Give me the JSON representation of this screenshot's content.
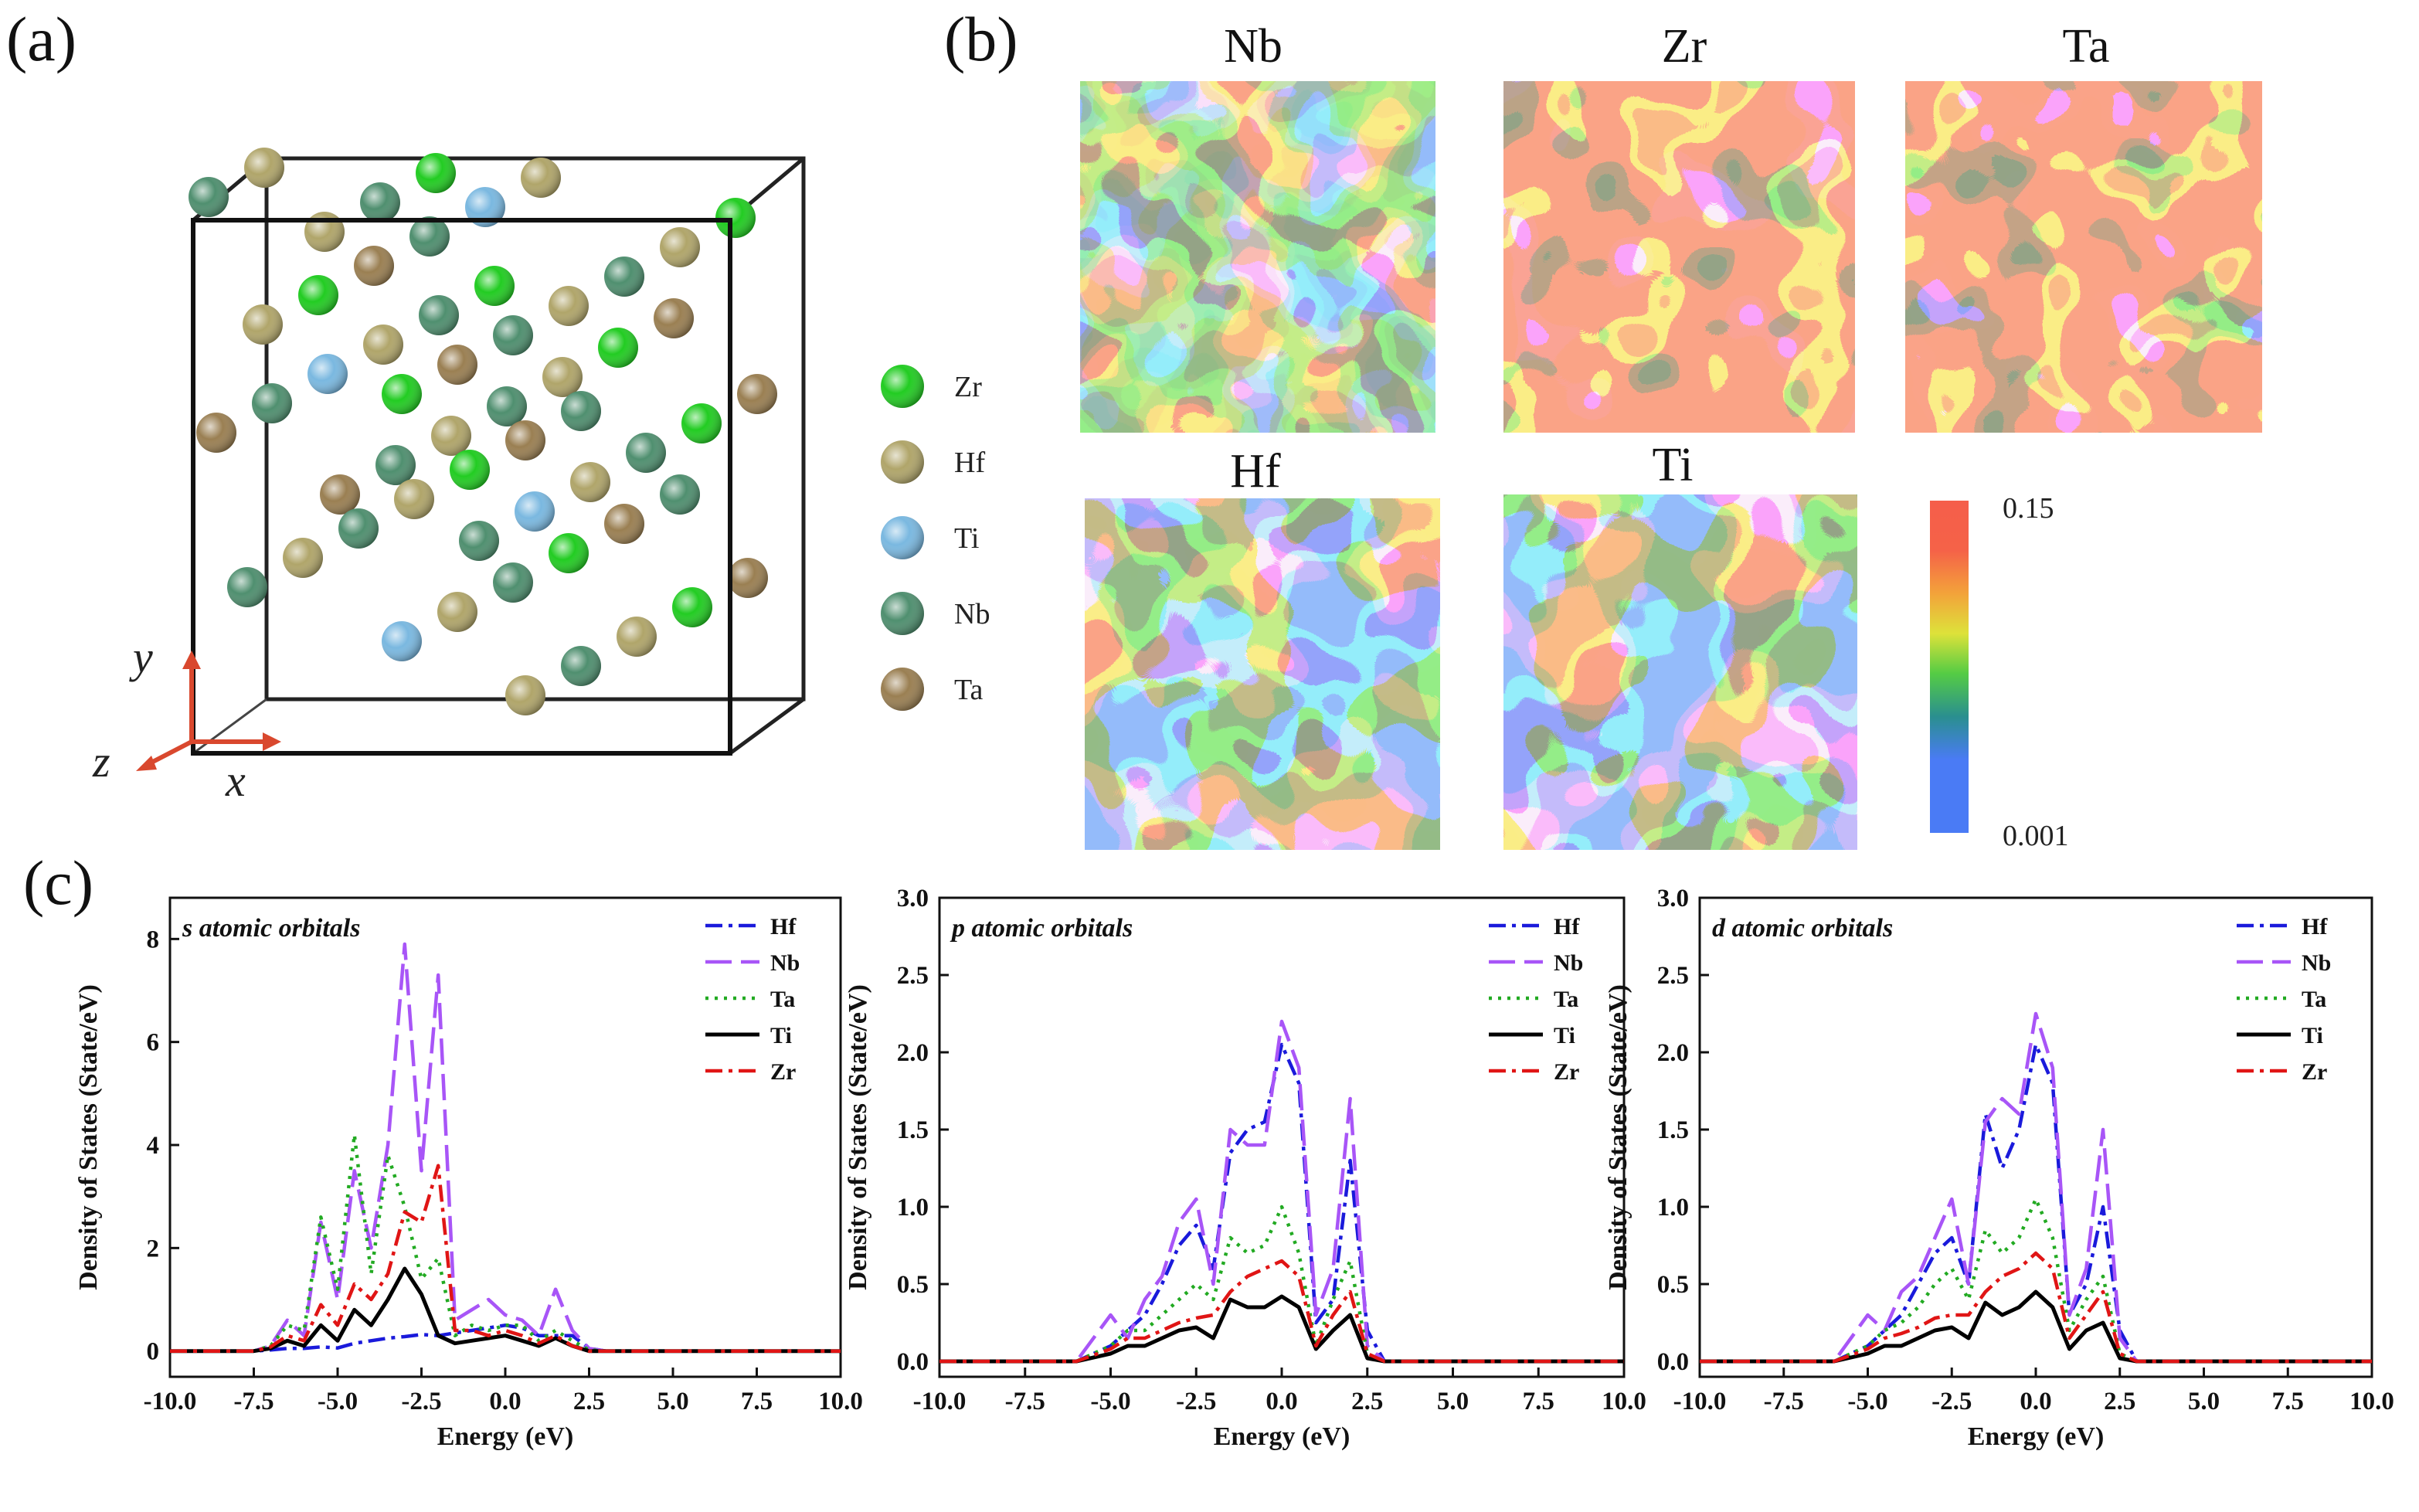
{
  "panels": {
    "a": "(a)",
    "b": "(b)",
    "c": "(c)"
  },
  "structure": {
    "elements": [
      {
        "name": "Zr",
        "color": "#22cc22"
      },
      {
        "name": "Hf",
        "color": "#b0a56a"
      },
      {
        "name": "Ti",
        "color": "#7ab8e0"
      },
      {
        "name": "Nb",
        "color": "#4f8f6f"
      },
      {
        "name": "Ta",
        "color": "#9a7f52"
      }
    ],
    "axes": {
      "x": "x",
      "y": "y",
      "z": "z"
    }
  },
  "maps": {
    "titles": [
      "Nb",
      "Zr",
      "Ta",
      "Hf",
      "Ti"
    ],
    "colorbar": {
      "max": "0.15",
      "min": "0.001"
    }
  },
  "chart_data": [
    {
      "type": "line",
      "title": "s atomic orbitals",
      "xlabel": "Energy (eV)",
      "ylabel": "Density of States (State/eV)",
      "xlim": [
        -10,
        10
      ],
      "ylim": [
        -0.5,
        8.8
      ],
      "xticks": [
        "-10.0",
        "-7.5",
        "-5.0",
        "-2.5",
        "0.0",
        "2.5",
        "5.0",
        "7.5",
        "10.0"
      ],
      "yticks": [
        "0",
        "2",
        "4",
        "6",
        "8"
      ],
      "legend_position": "top-right",
      "x": [
        -10,
        -7.5,
        -7.0,
        -6.5,
        -6.0,
        -5.5,
        -5.0,
        -4.5,
        -4.0,
        -3.5,
        -3.0,
        -2.5,
        -2.0,
        -1.5,
        -1.0,
        -0.5,
        0.0,
        0.5,
        1.0,
        1.5,
        2.0,
        2.5,
        3.0,
        10
      ],
      "series": [
        {
          "name": "Hf",
          "color": "#1a1adb",
          "dash": "dashdot",
          "values": [
            0,
            0,
            0.02,
            0.05,
            0.05,
            0.08,
            0.06,
            0.15,
            0.2,
            0.25,
            0.28,
            0.32,
            0.3,
            0.35,
            0.4,
            0.45,
            0.5,
            0.45,
            0.3,
            0.3,
            0.3,
            0.05,
            0,
            0
          ]
        },
        {
          "name": "Nb",
          "color": "#a855f7",
          "dash": "longdash",
          "values": [
            0,
            0,
            0.1,
            0.6,
            0.3,
            2.5,
            1.0,
            3.5,
            2.0,
            4.0,
            7.9,
            3.5,
            7.3,
            0.6,
            0.8,
            1.0,
            0.7,
            0.6,
            0.3,
            1.2,
            0.4,
            0.05,
            0,
            0
          ]
        },
        {
          "name": "Ta",
          "color": "#22aa22",
          "dash": "dot",
          "values": [
            0,
            0,
            0.1,
            0.5,
            0.4,
            2.6,
            1.2,
            4.2,
            1.5,
            3.8,
            2.8,
            1.4,
            1.8,
            0.3,
            0.5,
            0.4,
            0.5,
            0.5,
            0.2,
            0.4,
            0.2,
            0.02,
            0,
            0
          ]
        },
        {
          "name": "Ti",
          "color": "#000000",
          "dash": "solid",
          "values": [
            0,
            0,
            0.05,
            0.2,
            0.1,
            0.5,
            0.2,
            0.8,
            0.5,
            1.0,
            1.6,
            1.1,
            0.3,
            0.15,
            0.2,
            0.25,
            0.3,
            0.2,
            0.1,
            0.25,
            0.1,
            0,
            0,
            0
          ]
        },
        {
          "name": "Zr",
          "color": "#e01515",
          "dash": "dashdot",
          "values": [
            0,
            0,
            0.08,
            0.3,
            0.2,
            0.9,
            0.5,
            1.3,
            1.0,
            1.5,
            2.7,
            2.5,
            3.6,
            0.4,
            0.4,
            0.3,
            0.4,
            0.3,
            0.15,
            0.3,
            0.1,
            0,
            0,
            0
          ]
        }
      ]
    },
    {
      "type": "line",
      "title": "p atomic orbitals",
      "xlabel": "Energy (eV)",
      "ylabel": "Density of States (State/eV)",
      "xlim": [
        -10,
        10
      ],
      "ylim": [
        -0.1,
        3.0
      ],
      "xticks": [
        "-10.0",
        "-7.5",
        "-5.0",
        "-2.5",
        "0.0",
        "2.5",
        "5.0",
        "7.5",
        "10.0"
      ],
      "yticks": [
        "0.0",
        "0.5",
        "1.0",
        "1.5",
        "2.0",
        "2.5",
        "3.0"
      ],
      "legend_position": "top-right",
      "x": [
        -10,
        -6.0,
        -5.0,
        -4.5,
        -4.0,
        -3.5,
        -3.0,
        -2.5,
        -2.0,
        -1.5,
        -1.0,
        -0.5,
        0.0,
        0.5,
        1.0,
        1.5,
        2.0,
        2.5,
        3.0,
        10
      ],
      "series": [
        {
          "name": "Hf",
          "color": "#1a1adb",
          "dash": "dashdot",
          "values": [
            0,
            0,
            0.1,
            0.2,
            0.3,
            0.5,
            0.75,
            0.88,
            0.6,
            1.35,
            1.5,
            1.55,
            2.05,
            1.8,
            0.25,
            0.4,
            1.3,
            0.2,
            0,
            0
          ]
        },
        {
          "name": "Nb",
          "color": "#a855f7",
          "dash": "longdash",
          "values": [
            0,
            0,
            0.3,
            0.15,
            0.4,
            0.55,
            0.9,
            1.05,
            0.5,
            1.5,
            1.4,
            1.4,
            2.2,
            1.9,
            0.3,
            0.6,
            1.7,
            0.1,
            0,
            0
          ]
        },
        {
          "name": "Ta",
          "color": "#22aa22",
          "dash": "dot",
          "values": [
            0,
            0,
            0.1,
            0.2,
            0.2,
            0.3,
            0.4,
            0.5,
            0.4,
            0.8,
            0.7,
            0.75,
            1.0,
            0.7,
            0.1,
            0.4,
            0.65,
            0.05,
            0,
            0
          ]
        },
        {
          "name": "Ti",
          "color": "#000000",
          "dash": "solid",
          "values": [
            0,
            0,
            0.05,
            0.1,
            0.1,
            0.15,
            0.2,
            0.22,
            0.15,
            0.4,
            0.35,
            0.35,
            0.42,
            0.35,
            0.08,
            0.2,
            0.3,
            0.02,
            0,
            0
          ]
        },
        {
          "name": "Zr",
          "color": "#e01515",
          "dash": "dashdot",
          "values": [
            0,
            0,
            0.08,
            0.15,
            0.15,
            0.2,
            0.25,
            0.28,
            0.3,
            0.45,
            0.55,
            0.6,
            0.65,
            0.55,
            0.1,
            0.3,
            0.45,
            0.05,
            0,
            0
          ]
        }
      ]
    },
    {
      "type": "line",
      "title": "d atomic orbitals",
      "xlabel": "Energy (eV)",
      "ylabel": "Density of States (State/eV)",
      "xlim": [
        -10,
        10
      ],
      "ylim": [
        -0.1,
        3.0
      ],
      "xticks": [
        "-10.0",
        "-7.5",
        "-5.0",
        "-2.5",
        "0.0",
        "2.5",
        "5.0",
        "7.5",
        "10.0"
      ],
      "yticks": [
        "0.0",
        "0.5",
        "1.0",
        "1.5",
        "2.0",
        "2.5",
        "3.0"
      ],
      "legend_position": "top-right",
      "x": [
        -10,
        -6.0,
        -5.0,
        -4.5,
        -4.0,
        -3.5,
        -3.0,
        -2.5,
        -2.0,
        -1.5,
        -1.0,
        -0.5,
        0.0,
        0.5,
        1.0,
        1.5,
        2.0,
        2.5,
        3.0,
        10
      ],
      "series": [
        {
          "name": "Hf",
          "color": "#1a1adb",
          "dash": "dashdot",
          "values": [
            0,
            0,
            0.1,
            0.2,
            0.3,
            0.5,
            0.7,
            0.8,
            0.5,
            1.6,
            1.25,
            1.5,
            2.05,
            1.8,
            0.3,
            0.5,
            1.0,
            0.2,
            0,
            0
          ]
        },
        {
          "name": "Nb",
          "color": "#a855f7",
          "dash": "longdash",
          "values": [
            0,
            0,
            0.3,
            0.2,
            0.45,
            0.55,
            0.8,
            1.05,
            0.5,
            1.55,
            1.7,
            1.6,
            2.25,
            1.9,
            0.3,
            0.6,
            1.5,
            0.15,
            0,
            0
          ]
        },
        {
          "name": "Ta",
          "color": "#22aa22",
          "dash": "dot",
          "values": [
            0,
            0,
            0.1,
            0.2,
            0.25,
            0.35,
            0.5,
            0.6,
            0.4,
            0.85,
            0.7,
            0.8,
            1.05,
            0.8,
            0.2,
            0.4,
            0.55,
            0.05,
            0,
            0
          ]
        },
        {
          "name": "Ti",
          "color": "#000000",
          "dash": "solid",
          "values": [
            0,
            0,
            0.05,
            0.1,
            0.1,
            0.15,
            0.2,
            0.22,
            0.15,
            0.38,
            0.3,
            0.35,
            0.45,
            0.35,
            0.08,
            0.2,
            0.25,
            0.02,
            0,
            0
          ]
        },
        {
          "name": "Zr",
          "color": "#e01515",
          "dash": "dashdot",
          "values": [
            0,
            0,
            0.08,
            0.15,
            0.18,
            0.22,
            0.28,
            0.3,
            0.3,
            0.45,
            0.55,
            0.6,
            0.7,
            0.6,
            0.15,
            0.3,
            0.45,
            0.05,
            0,
            0
          ]
        }
      ]
    }
  ]
}
